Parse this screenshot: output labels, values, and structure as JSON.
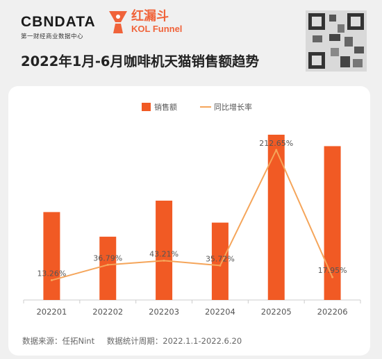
{
  "header": {
    "cbn_logo": "CBNDATA",
    "cbn_sub": "第一财经商业数据中心",
    "kol_logo_cn": "红漏斗",
    "kol_logo_en": "KOL Funnel",
    "title": "2022年1月-6月咖啡机天猫销售额趋势"
  },
  "footer": {
    "source": "数据来源：任拓Nint",
    "period": "数据统计周期：2022.1.1-2022.6.20"
  },
  "colors": {
    "bar": "#f15a24",
    "line": "#f5a55a",
    "axis": "#cccccc",
    "label": "#555555",
    "page_bg": "#f0f0f0",
    "card_bg": "#ffffff",
    "brand": "#f0633a"
  },
  "chart_data": {
    "type": "bar",
    "categories": [
      "202201",
      "202202",
      "202203",
      "202204",
      "202205",
      "202206"
    ],
    "series": [
      {
        "name": "销售额",
        "kind": "bar",
        "values": [
          100,
          72,
          113,
          88,
          188,
          175
        ]
      },
      {
        "name": "同比增长率",
        "kind": "line",
        "values": [
          13.26,
          36.79,
          43.21,
          35.72,
          212.65,
          17.95
        ],
        "labels": [
          "13.26%",
          "36.79%",
          "43.21%",
          "35.72%",
          "212.65%",
          "17.95%"
        ]
      }
    ],
    "legend_position": "top-center",
    "grid": false,
    "title": "",
    "xlabel": "",
    "ylabel": ""
  }
}
